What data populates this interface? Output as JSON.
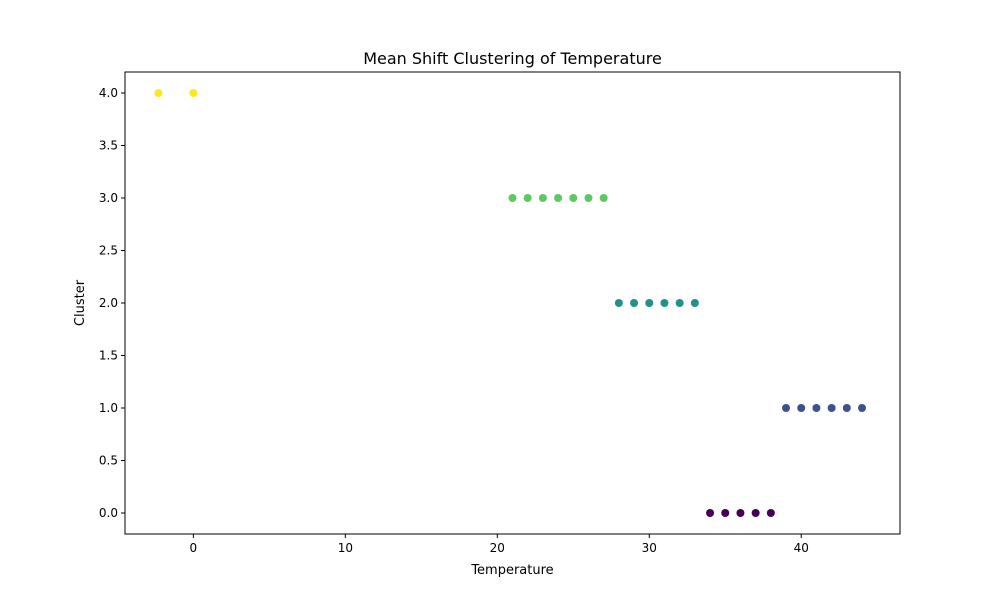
{
  "chart_data": {
    "type": "scatter",
    "title": "Mean Shift Clustering of Temperature",
    "xlabel": "Temperature",
    "ylabel": "Cluster",
    "xlim": [
      -4.5,
      46.5
    ],
    "ylim": [
      -0.2,
      4.2
    ],
    "x_ticks": [
      0,
      10,
      20,
      30,
      40
    ],
    "x_tick_labels": [
      "0",
      "10",
      "20",
      "30",
      "40"
    ],
    "y_ticks": [
      0.0,
      0.5,
      1.0,
      1.5,
      2.0,
      2.5,
      3.0,
      3.5,
      4.0
    ],
    "y_tick_labels": [
      "0.0",
      "0.5",
      "1.0",
      "1.5",
      "2.0",
      "2.5",
      "3.0",
      "3.5",
      "4.0"
    ],
    "grid": false,
    "legend": "none",
    "colors": {
      "cluster_0": "#440154",
      "cluster_1": "#3b528b",
      "cluster_2": "#21918c",
      "cluster_3": "#5ec962",
      "cluster_4": "#fde725"
    },
    "points": [
      {
        "x": -2.3,
        "y": 4,
        "color": "#fde725"
      },
      {
        "x": 0,
        "y": 4,
        "color": "#fde725"
      },
      {
        "x": 21,
        "y": 3,
        "color": "#5ec962"
      },
      {
        "x": 22,
        "y": 3,
        "color": "#5ec962"
      },
      {
        "x": 23,
        "y": 3,
        "color": "#5ec962"
      },
      {
        "x": 24,
        "y": 3,
        "color": "#5ec962"
      },
      {
        "x": 25,
        "y": 3,
        "color": "#5ec962"
      },
      {
        "x": 26,
        "y": 3,
        "color": "#5ec962"
      },
      {
        "x": 27,
        "y": 3,
        "color": "#5ec962"
      },
      {
        "x": 28,
        "y": 2,
        "color": "#21918c"
      },
      {
        "x": 29,
        "y": 2,
        "color": "#21918c"
      },
      {
        "x": 30,
        "y": 2,
        "color": "#21918c"
      },
      {
        "x": 31,
        "y": 2,
        "color": "#21918c"
      },
      {
        "x": 32,
        "y": 2,
        "color": "#21918c"
      },
      {
        "x": 33,
        "y": 2,
        "color": "#21918c"
      },
      {
        "x": 39,
        "y": 1,
        "color": "#3b528b"
      },
      {
        "x": 40,
        "y": 1,
        "color": "#3b528b"
      },
      {
        "x": 41,
        "y": 1,
        "color": "#3b528b"
      },
      {
        "x": 42,
        "y": 1,
        "color": "#3b528b"
      },
      {
        "x": 43,
        "y": 1,
        "color": "#3b528b"
      },
      {
        "x": 44,
        "y": 1,
        "color": "#3b528b"
      },
      {
        "x": 34,
        "y": 0,
        "color": "#440154"
      },
      {
        "x": 35,
        "y": 0,
        "color": "#440154"
      },
      {
        "x": 36,
        "y": 0,
        "color": "#440154"
      },
      {
        "x": 37,
        "y": 0,
        "color": "#440154"
      },
      {
        "x": 38,
        "y": 0,
        "color": "#440154"
      }
    ]
  }
}
